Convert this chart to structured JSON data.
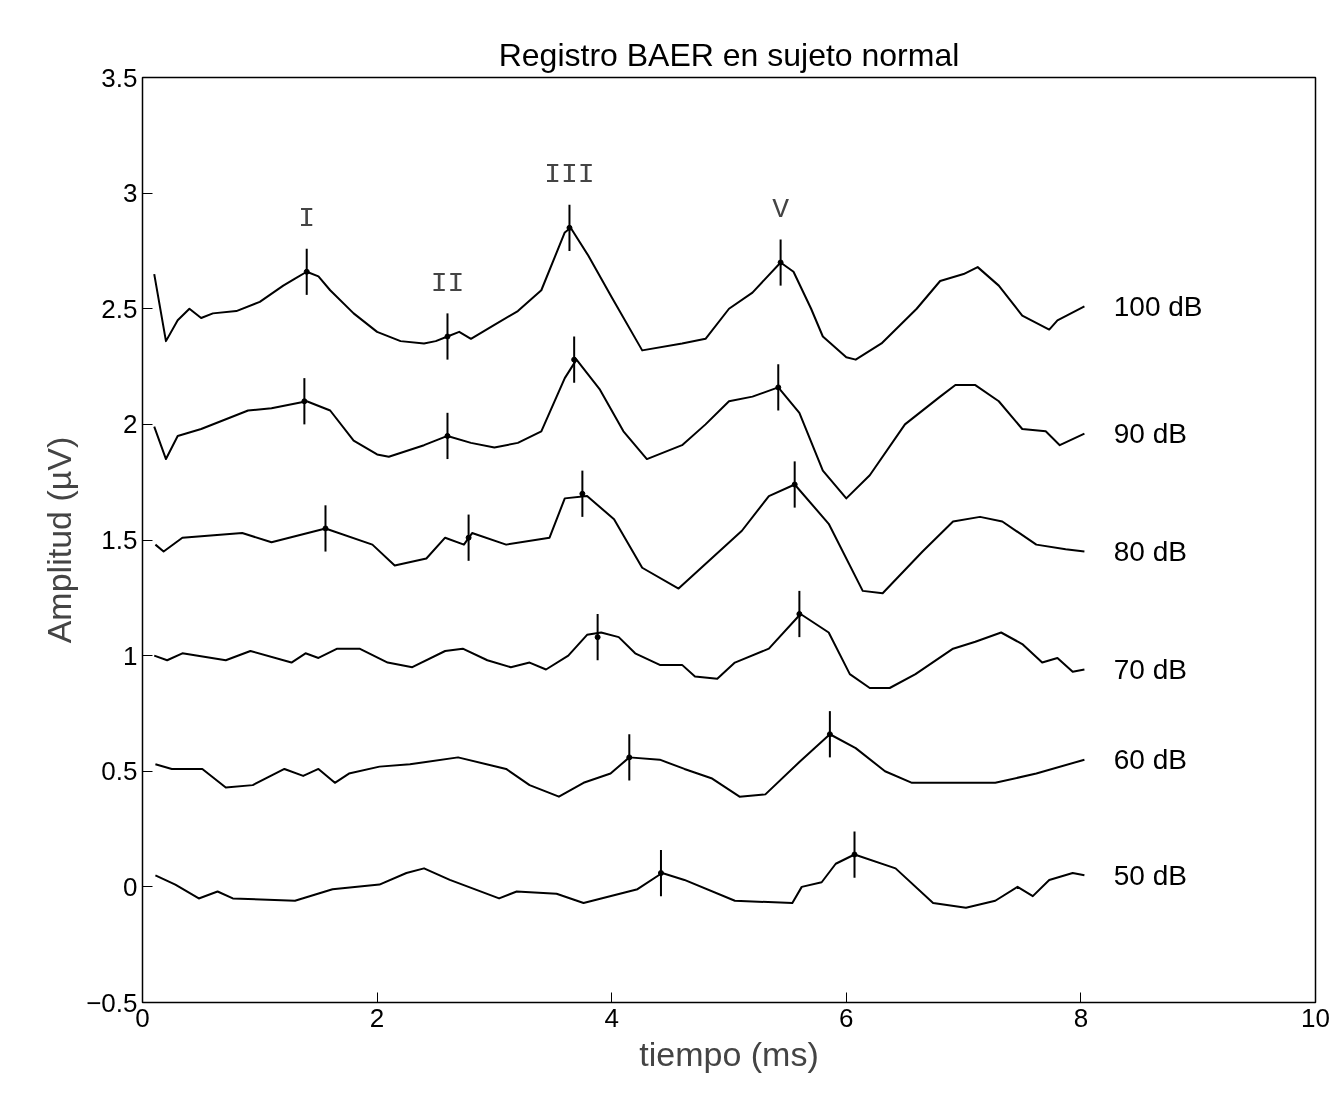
{
  "chart_data": {
    "type": "line",
    "title": "Registro BAER en sujeto normal",
    "xlabel": "tiempo (ms)",
    "ylabel": "Amplitud (µV)",
    "xlim": [
      0,
      10
    ],
    "xticks": [
      0,
      2,
      4,
      6,
      8,
      10
    ],
    "ylim": [
      -0.5,
      3.5
    ],
    "yticks": [
      {
        "value": -0.5,
        "label": "−0.5"
      },
      0,
      0.5,
      1,
      1.5,
      2,
      2.5,
      3,
      3.5
    ],
    "grid": false,
    "line_style": "solid",
    "series": [
      {
        "name": "100 dB",
        "color": "#000000",
        "x": [
          0.1,
          0.2,
          0.3,
          0.4,
          0.5,
          0.6,
          0.8,
          1.0,
          1.2,
          1.3,
          1.4,
          1.5,
          1.6,
          1.8,
          2.0,
          2.2,
          2.4,
          2.5,
          2.6,
          2.7,
          2.8,
          3.0,
          3.2,
          3.4,
          3.6,
          3.65,
          3.8,
          4.0,
          4.26,
          4.6,
          4.8,
          5.0,
          5.2,
          5.44,
          5.55,
          5.7,
          5.8,
          6.0,
          6.08,
          6.3,
          6.6,
          6.8,
          7.0,
          7.12,
          7.3,
          7.5,
          7.73,
          7.8,
          8.03
        ],
        "values": [
          2.65,
          2.36,
          2.45,
          2.5,
          2.46,
          2.48,
          2.49,
          2.53,
          2.6,
          2.63,
          2.66,
          2.64,
          2.58,
          2.48,
          2.4,
          2.36,
          2.35,
          2.36,
          2.38,
          2.4,
          2.37,
          2.43,
          2.49,
          2.58,
          2.83,
          2.85,
          2.73,
          2.55,
          2.32,
          2.35,
          2.37,
          2.5,
          2.57,
          2.7,
          2.66,
          2.5,
          2.38,
          2.29,
          2.28,
          2.35,
          2.5,
          2.62,
          2.65,
          2.68,
          2.6,
          2.47,
          2.41,
          2.45,
          2.51
        ]
      },
      {
        "name": "90 dB",
        "color": "#000000",
        "x": [
          0.1,
          0.2,
          0.3,
          0.5,
          0.7,
          0.9,
          1.1,
          1.4,
          1.6,
          1.8,
          2.0,
          2.1,
          2.4,
          2.6,
          2.8,
          3.0,
          3.2,
          3.4,
          3.6,
          3.7,
          3.9,
          4.1,
          4.3,
          4.6,
          4.8,
          5.0,
          5.2,
          5.42,
          5.6,
          5.8,
          6.0,
          6.2,
          6.5,
          6.8,
          6.93,
          7.1,
          7.3,
          7.5,
          7.7,
          7.82,
          8.03
        ],
        "values": [
          1.99,
          1.85,
          1.95,
          1.98,
          2.02,
          2.06,
          2.07,
          2.1,
          2.06,
          1.93,
          1.87,
          1.86,
          1.91,
          1.95,
          1.92,
          1.9,
          1.92,
          1.97,
          2.2,
          2.28,
          2.15,
          1.97,
          1.85,
          1.91,
          2.0,
          2.1,
          2.12,
          2.16,
          2.05,
          1.8,
          1.68,
          1.78,
          2.0,
          2.12,
          2.17,
          2.17,
          2.1,
          1.98,
          1.97,
          1.91,
          1.96
        ]
      },
      {
        "name": "80 dB",
        "color": "#000000",
        "x": [
          0.11,
          0.18,
          0.34,
          0.85,
          1.1,
          1.56,
          1.96,
          2.15,
          2.42,
          2.58,
          2.74,
          2.81,
          3.1,
          3.47,
          3.6,
          3.79,
          4.02,
          4.26,
          4.57,
          5.11,
          5.34,
          5.56,
          5.85,
          6.14,
          6.31,
          6.65,
          6.91,
          7.14,
          7.33,
          7.62,
          7.87,
          8.03
        ],
        "values": [
          1.48,
          1.45,
          1.51,
          1.53,
          1.49,
          1.55,
          1.48,
          1.39,
          1.42,
          1.51,
          1.48,
          1.53,
          1.48,
          1.51,
          1.68,
          1.69,
          1.59,
          1.38,
          1.29,
          1.54,
          1.69,
          1.74,
          1.57,
          1.28,
          1.27,
          1.45,
          1.58,
          1.6,
          1.58,
          1.48,
          1.46,
          1.45
        ]
      },
      {
        "name": "70 dB",
        "color": "#000000",
        "x": [
          0.1,
          0.21,
          0.34,
          0.71,
          0.92,
          1.27,
          1.39,
          1.5,
          1.66,
          1.85,
          2.09,
          2.3,
          2.58,
          2.73,
          2.94,
          3.14,
          3.3,
          3.44,
          3.63,
          3.79,
          3.91,
          4.06,
          4.2,
          4.41,
          4.6,
          4.71,
          4.9,
          5.05,
          5.34,
          5.61,
          5.85,
          6.03,
          6.2,
          6.37,
          6.59,
          6.91,
          7.1,
          7.32,
          7.5,
          7.67,
          7.8,
          7.93,
          8.03
        ],
        "values": [
          1.0,
          0.98,
          1.01,
          0.98,
          1.02,
          0.97,
          1.01,
          0.99,
          1.03,
          1.03,
          0.97,
          0.95,
          1.02,
          1.03,
          0.98,
          0.95,
          0.97,
          0.94,
          1.0,
          1.09,
          1.1,
          1.08,
          1.01,
          0.96,
          0.96,
          0.91,
          0.9,
          0.97,
          1.03,
          1.18,
          1.1,
          0.92,
          0.86,
          0.86,
          0.92,
          1.03,
          1.06,
          1.1,
          1.05,
          0.97,
          0.99,
          0.93,
          0.94
        ]
      },
      {
        "name": "60 dB",
        "color": "#000000",
        "x": [
          0.11,
          0.25,
          0.51,
          0.71,
          0.94,
          1.21,
          1.37,
          1.5,
          1.64,
          1.76,
          2.02,
          2.28,
          2.69,
          3.1,
          3.3,
          3.55,
          3.76,
          3.99,
          4.15,
          4.41,
          4.62,
          4.85,
          5.09,
          5.31,
          5.6,
          5.86,
          6.08,
          6.33,
          6.56,
          6.99,
          7.27,
          7.62,
          8.03
        ],
        "values": [
          0.53,
          0.51,
          0.51,
          0.43,
          0.44,
          0.51,
          0.48,
          0.51,
          0.45,
          0.49,
          0.52,
          0.53,
          0.56,
          0.51,
          0.44,
          0.39,
          0.45,
          0.49,
          0.56,
          0.55,
          0.51,
          0.47,
          0.39,
          0.4,
          0.54,
          0.66,
          0.6,
          0.5,
          0.45,
          0.45,
          0.45,
          0.49,
          0.55
        ]
      },
      {
        "name": "50 dB",
        "color": "#000000",
        "x": [
          0.11,
          0.28,
          0.48,
          0.64,
          0.77,
          1.3,
          1.62,
          2.02,
          2.25,
          2.4,
          2.62,
          3.04,
          3.19,
          3.53,
          3.76,
          4.22,
          4.43,
          4.62,
          5.05,
          5.54,
          5.62,
          5.79,
          5.91,
          6.07,
          6.42,
          6.74,
          7.02,
          7.27,
          7.46,
          7.59,
          7.73,
          7.93,
          8.03
        ],
        "values": [
          0.05,
          0.01,
          -0.05,
          -0.02,
          -0.05,
          -0.06,
          -0.01,
          0.01,
          0.06,
          0.08,
          0.03,
          -0.05,
          -0.02,
          -0.03,
          -0.07,
          -0.01,
          0.06,
          0.03,
          -0.06,
          -0.07,
          0.0,
          0.02,
          0.1,
          0.14,
          0.08,
          -0.07,
          -0.09,
          -0.06,
          0.0,
          -0.04,
          0.03,
          0.06,
          0.05
        ]
      },
      {
        "type": "scatter",
        "marker": "circle",
        "color": "#000000",
        "errors": [
          0.1,
          0.1,
          0.1,
          0.1,
          0.1,
          0.1,
          0.1,
          0.1,
          0.1,
          0.1,
          0.1,
          0.1,
          0.1,
          0.1,
          0.1,
          0.1,
          0.1,
          0.1
        ],
        "x": [
          1.4,
          2.6,
          3.64,
          5.44,
          1.38,
          2.6,
          3.68,
          5.42,
          1.56,
          2.78,
          3.75,
          5.56,
          3.88,
          5.6,
          4.15,
          5.86,
          4.42,
          6.07
        ],
        "values": [
          2.66,
          2.38,
          2.85,
          2.7,
          2.1,
          1.95,
          2.28,
          2.16,
          1.55,
          1.51,
          1.7,
          1.74,
          1.08,
          1.18,
          0.56,
          0.66,
          0.06,
          0.14
        ]
      }
    ],
    "annotations": [
      {
        "text": "I",
        "x": 1.4,
        "y": 2.66
      },
      {
        "text": "II",
        "x": 2.6,
        "y": 2.38
      },
      {
        "text": "III",
        "x": 3.64,
        "y": 2.85
      },
      {
        "text": "V",
        "x": 5.44,
        "y": 2.7
      }
    ]
  }
}
